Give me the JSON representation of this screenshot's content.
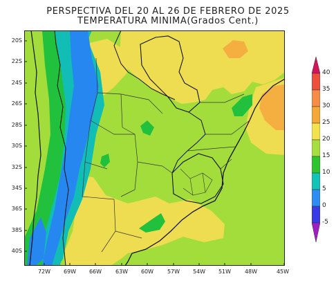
{
  "header": {
    "title_line1": "PERSPECTIVA DEL 20 AL 26 DE FEBRERO DE 2025",
    "title_line2": "TEMPERATURA MINIMA(Grados Cent.)"
  },
  "axes": {
    "lat_labels": [
      "20S",
      "22S",
      "24S",
      "26S",
      "28S",
      "30S",
      "32S",
      "34S",
      "36S",
      "38S",
      "40S"
    ],
    "lon_labels": [
      "72W",
      "69W",
      "66W",
      "63W",
      "60W",
      "57W",
      "54W",
      "51W",
      "48W",
      "45W"
    ]
  },
  "colorbar": {
    "labels": [
      "40",
      "35",
      "30",
      "25",
      "20",
      "15",
      "10",
      "5",
      "0",
      "-5"
    ],
    "colors": [
      "#d2155a",
      "#ee4e3c",
      "#f68c46",
      "#f5a83a",
      "#f2e24b",
      "#a6de3f",
      "#2ec42e",
      "#13c3b8",
      "#2e8df3",
      "#3a3ae6",
      "#a01fc1"
    ]
  },
  "map_colors": {
    "c15_20": "#a3dd3c",
    "c20_25": "#eedd50",
    "c25_30": "#f5af40",
    "c10_15": "#22c13d",
    "c5_10": "#12bdb6",
    "c0_5": "#2687f0",
    "ocean": "#a3dd3c"
  }
}
